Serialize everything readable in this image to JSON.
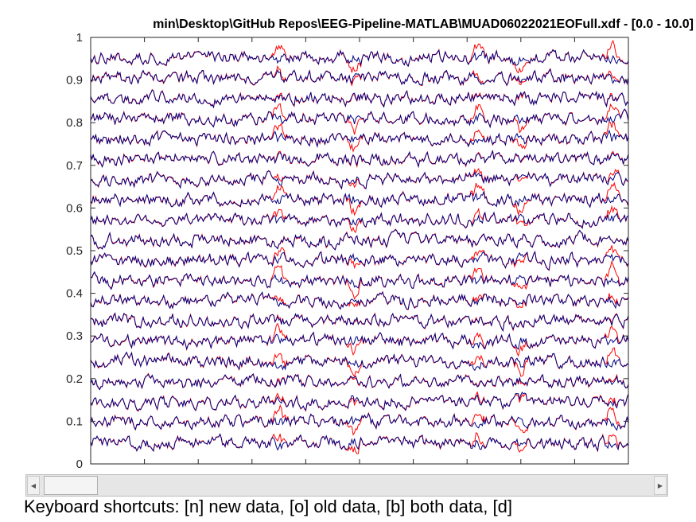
{
  "window": {
    "title": "min\\Desktop\\GitHub Repos\\EEG-Pipeline-MATLAB\\MUAD06022021EOFull.xdf - [0.0 - 10.0]"
  },
  "chart_data": {
    "type": "line",
    "title": "min\\Desktop\\GitHub Repos\\EEG-Pipeline-MATLAB\\MUAD06022021EOFull.xdf - [0.0 - 10.0]",
    "xlabel": "",
    "ylabel": "",
    "xlim": [
      0,
      10
    ],
    "ylim": [
      0,
      1
    ],
    "yticks": [
      0,
      0.1,
      0.2,
      0.3,
      0.4,
      0.5,
      0.6,
      0.7,
      0.8,
      0.9,
      1
    ],
    "ytick_labels": [
      "0",
      "0.1",
      "0.2",
      "0.3",
      "0.4",
      "0.5",
      "0.6",
      "0.7",
      "0.8",
      "0.9",
      "1"
    ],
    "xticks": [
      0,
      1,
      2,
      3,
      4,
      5,
      6,
      7,
      8,
      9,
      10
    ],
    "grid": false,
    "channel_count": 20,
    "channel_offsets": [
      0.05,
      0.0975,
      0.145,
      0.1925,
      0.24,
      0.2875,
      0.335,
      0.3825,
      0.43,
      0.4775,
      0.525,
      0.5725,
      0.62,
      0.6675,
      0.715,
      0.7625,
      0.81,
      0.8575,
      0.905,
      0.9525
    ],
    "series": [
      {
        "label": "old data",
        "color": "#ff0000"
      },
      {
        "label": "new data",
        "color": "#000080"
      }
    ],
    "artifact_times": [
      3.5,
      4.9,
      7.2,
      8.0,
      9.7
    ],
    "artifact_amplitudes": [
      0.035,
      0.05,
      0.03,
      0.045,
      0.04
    ]
  },
  "scrollbar": {
    "left_arrow": "◀",
    "right_arrow": "▶",
    "thumb_fraction": 0.085
  },
  "footer": {
    "shortcuts": "Keyboard shortcuts: [n] new data, [o] old data, [b] both data, [d]"
  }
}
